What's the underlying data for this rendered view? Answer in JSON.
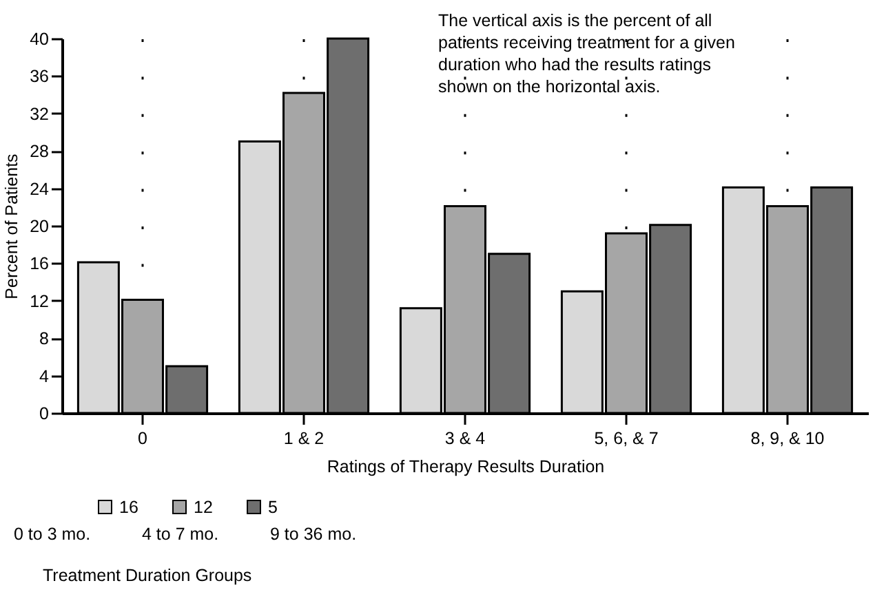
{
  "chart_data": {
    "type": "bar",
    "ylabel": "Percent of Patients",
    "xlabel": "Ratings of Therapy Results Duration",
    "categories": [
      "0",
      "1 & 2",
      "3 & 4",
      "5, 6, & 7",
      "8, 9, & 10"
    ],
    "series": [
      {
        "name": "16",
        "color": "#d9d9d9",
        "values": [
          16.1,
          29.0,
          11.2,
          13.0,
          24.1
        ]
      },
      {
        "name": "12",
        "color": "#a6a6a6",
        "values": [
          12.1,
          34.2,
          22.1,
          19.2,
          22.1
        ]
      },
      {
        "name": "5",
        "color": "#6e6e6e",
        "values": [
          5.0,
          40.0,
          17.0,
          20.1,
          24.1
        ]
      }
    ],
    "ylim": [
      0,
      40
    ],
    "yticks": [
      0,
      4,
      8,
      12,
      16,
      20,
      24,
      28,
      32,
      36,
      40
    ],
    "grid": "x",
    "legend": "bottom left",
    "annotations": [
      "The vertical axis is the percent of all\npatients receiving treatment for a given\nduration who had the results ratings\nshown on the horizontal axis.",
      "0 to 3 mo.",
      "4 to 7 mo.",
      "9 to 36 mo.",
      "Treatment Duration Groups"
    ]
  }
}
